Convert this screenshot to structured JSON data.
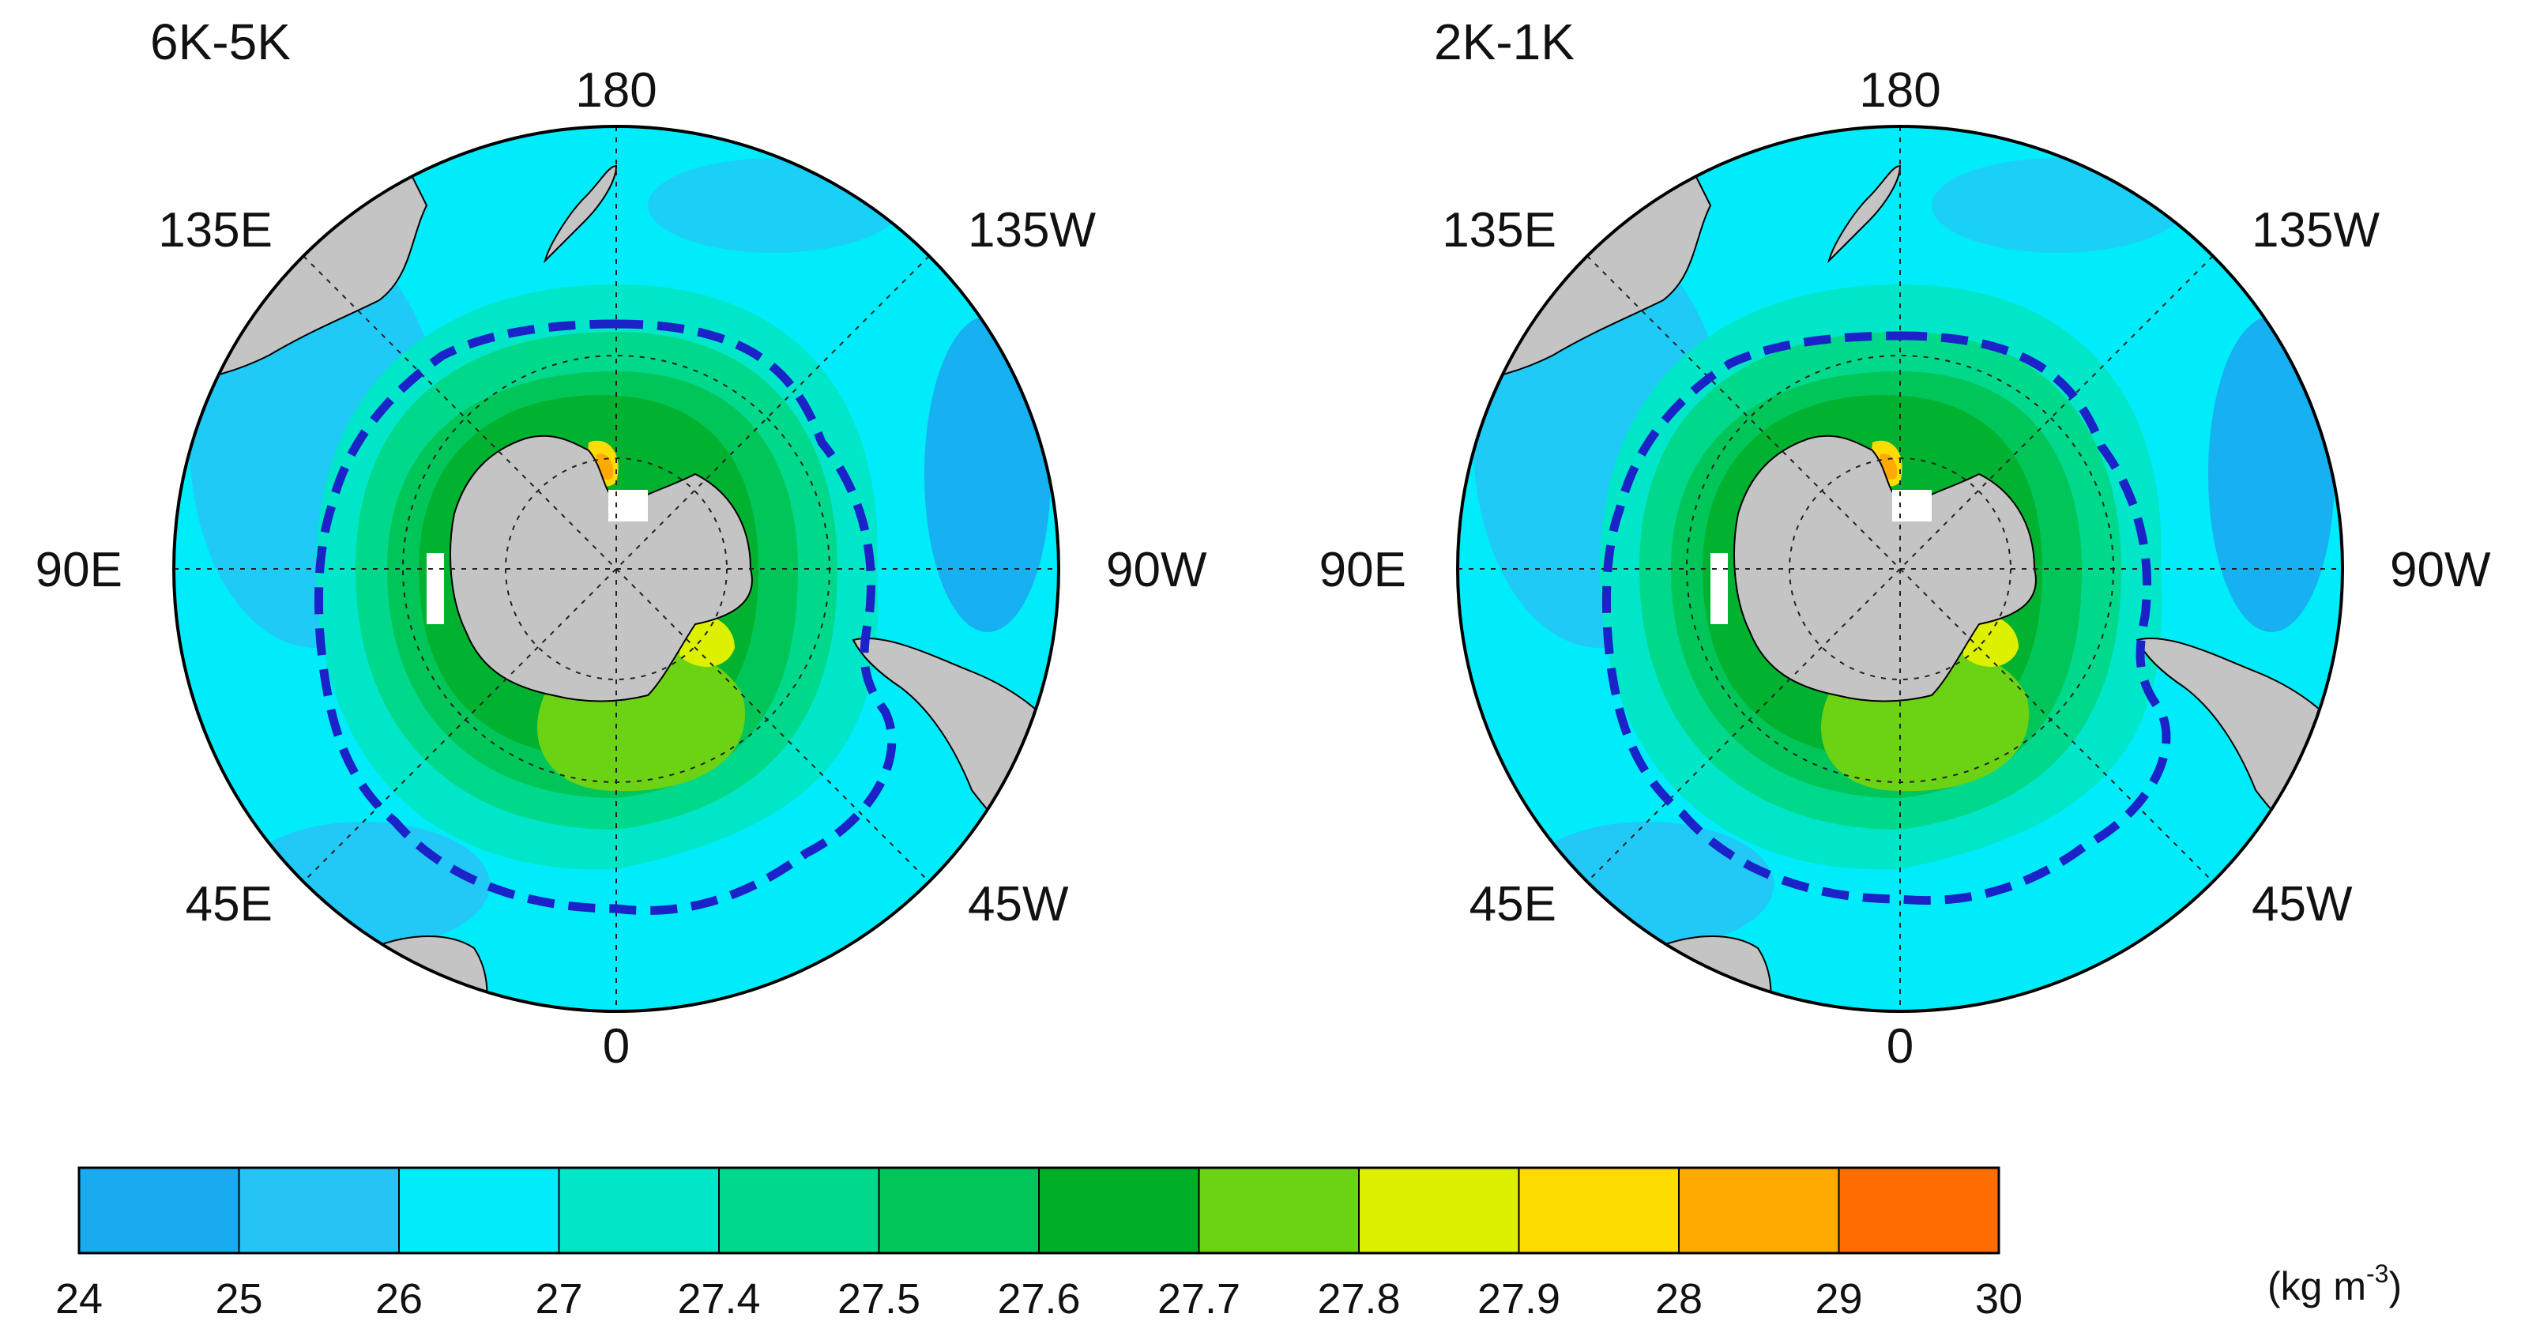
{
  "panels": [
    {
      "title": "6K-5K",
      "labels": {
        "top": "180",
        "bottom": "0",
        "left": "90E",
        "right": "90W",
        "upper_left": "135E",
        "upper_right": "135W",
        "lower_left": "45E",
        "lower_right": "45W"
      },
      "front_radius_scale": 1.0
    },
    {
      "title": "2K-1K",
      "labels": {
        "top": "180",
        "bottom": "0",
        "left": "90E",
        "right": "90W",
        "upper_left": "135E",
        "upper_right": "135W",
        "lower_left": "45E",
        "lower_right": "45W"
      },
      "front_radius_scale": 0.985
    }
  ],
  "colorbar": {
    "ticks": [
      "24",
      "25",
      "26",
      "27",
      "27.4",
      "27.5",
      "27.6",
      "27.7",
      "27.8",
      "27.9",
      "28",
      "29",
      "30"
    ],
    "colors": [
      "#1aaaf0",
      "#26c4f5",
      "#00ecfa",
      "#00e6c8",
      "#00d88c",
      "#00c65a",
      "#00ae28",
      "#6cd214",
      "#dcf000",
      "#ffdc00",
      "#ffaa00",
      "#ff6c00"
    ],
    "unit_main": "(kg m",
    "unit_sup": "-3",
    "unit_close": ")"
  },
  "colors": {
    "land": "#c4c4c4",
    "ocean_base": "#00ecfa",
    "front_line": "#1a22c8",
    "grid": "#222222"
  }
}
